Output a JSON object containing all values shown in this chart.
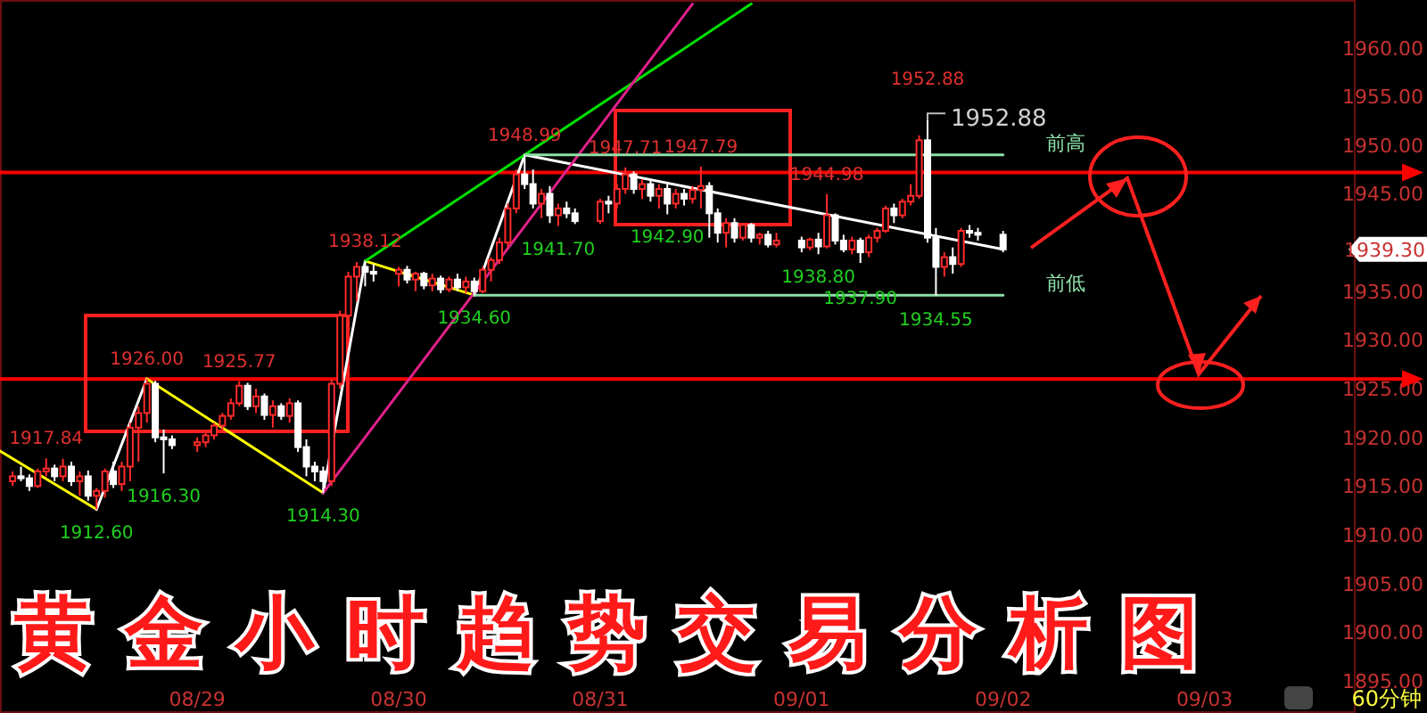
{
  "chart_data": {
    "type": "candlestick",
    "title": "黄金小时趋势交易分析图",
    "x": [
      "--08-28T02:00",
      "--08-28T03:00",
      "--08-28T04:00",
      "--08-28T05:00",
      "--08-28T06:00",
      "--08-28T07:00",
      "--08-28T08:00",
      "--08-28T09:00",
      "--08-28T10:00",
      "--08-28T11:00",
      "--08-28T12:00",
      "--08-28T13:00",
      "--08-28T14:00",
      "--08-28T15:00",
      "--08-28T16:00",
      "--08-28T17:00",
      "--08-28T18:00",
      "--08-28T19:00",
      "--08-28T20:00",
      "--08-28T21:00",
      "--08-29T00:00",
      "--08-29T01:00",
      "--08-29T02:00",
      "--08-29T03:00",
      "--08-29T04:00",
      "--08-29T05:00",
      "--08-29T06:00",
      "--08-29T07:00",
      "--08-29T08:00",
      "--08-29T09:00",
      "--08-29T10:00",
      "--08-29T11:00",
      "--08-29T12:00",
      "--08-29T13:00",
      "--08-29T14:00",
      "--08-29T15:00",
      "--08-29T16:00",
      "--08-29T17:00",
      "--08-29T18:00",
      "--08-29T19:00",
      "--08-29T20:00",
      "--08-29T21:00",
      "--08-30T00:00",
      "--08-30T01:00",
      "--08-30T02:00",
      "--08-30T03:00",
      "--08-30T04:00",
      "--08-30T05:00",
      "--08-30T06:00",
      "--08-30T07:00",
      "--08-30T08:00",
      "--08-30T09:00",
      "--08-30T10:00",
      "--08-30T11:00",
      "--08-30T12:00",
      "--08-30T13:00",
      "--08-30T14:00",
      "--08-30T15:00",
      "--08-30T16:00",
      "--08-30T17:00",
      "--08-30T18:00",
      "--08-30T19:00",
      "--08-30T20:00",
      "--08-30T21:00",
      "--08-31T00:00",
      "--08-31T01:00",
      "--08-31T02:00",
      "--08-31T03:00",
      "--08-31T04:00",
      "--08-31T05:00",
      "--08-31T06:00",
      "--08-31T07:00",
      "--08-31T08:00",
      "--08-31T09:00",
      "--08-31T10:00",
      "--08-31T11:00",
      "--08-31T12:00",
      "--08-31T13:00",
      "--08-31T14:00",
      "--08-31T15:00",
      "--08-31T16:00",
      "--08-31T17:00",
      "--08-31T18:00",
      "--08-31T19:00",
      "--08-31T20:00",
      "--08-31T21:00",
      "--09-01T00:00",
      "--09-01T01:00",
      "--09-01T02:00",
      "--09-01T03:00",
      "--09-01T04:00",
      "--09-01T05:00",
      "--09-01T06:00",
      "--09-01T07:00",
      "--09-01T08:00",
      "--09-01T09:00",
      "--09-01T10:00",
      "--09-01T11:00",
      "--09-01T12:00",
      "--09-01T13:00",
      "--09-01T14:00",
      "--09-01T15:00",
      "--09-01T16:00",
      "--09-01T17:00",
      "--09-01T18:00",
      "--09-01T19:00",
      "--09-01T20:00",
      "--09-01T21:00",
      "--09-02T00:00"
    ],
    "ohlc": [
      [
        1915.5,
        1916.5,
        1915,
        1916
      ],
      [
        1916,
        1917,
        1915.5,
        1915.8
      ],
      [
        1915.8,
        1916.2,
        1914.5,
        1915
      ],
      [
        1915,
        1916.8,
        1914.8,
        1916.5
      ],
      [
        1916.5,
        1917.84,
        1916,
        1916.8
      ],
      [
        1916.8,
        1917.2,
        1915.5,
        1916
      ],
      [
        1916,
        1917.8,
        1915.5,
        1917
      ],
      [
        1917,
        1917.5,
        1915,
        1915.5
      ],
      [
        1915.5,
        1916.5,
        1914,
        1916
      ],
      [
        1916,
        1916.6,
        1913.5,
        1914
      ],
      [
        1914,
        1914.8,
        1912.6,
        1914.5
      ],
      [
        1914.5,
        1916.8,
        1913.8,
        1916.5
      ],
      [
        1916.5,
        1917.5,
        1914.8,
        1915.2
      ],
      [
        1915.2,
        1917.5,
        1914.5,
        1917
      ],
      [
        1917,
        1921.5,
        1915.5,
        1921
      ],
      [
        1921,
        1923.2,
        1917.5,
        1922.5
      ],
      [
        1922.5,
        1926,
        1921.5,
        1925.5
      ],
      [
        1925.5,
        1925.8,
        1919.5,
        1920
      ],
      [
        1920,
        1920.8,
        1916.3,
        1919.8
      ],
      [
        1919.8,
        1920.2,
        1918.8,
        1919.2
      ],
      [
        1919.2,
        1920,
        1918.5,
        1919.5
      ],
      [
        1919.5,
        1920.5,
        1919,
        1920.2
      ],
      [
        1920.2,
        1921.5,
        1919.8,
        1921.2
      ],
      [
        1921.2,
        1922.5,
        1920.8,
        1922.2
      ],
      [
        1922.2,
        1924,
        1921.8,
        1923.5
      ],
      [
        1923.5,
        1925.77,
        1923.2,
        1925.3
      ],
      [
        1925.3,
        1925.6,
        1922.8,
        1923.2
      ],
      [
        1923.2,
        1925,
        1922.5,
        1924.2
      ],
      [
        1924.2,
        1924.5,
        1921.8,
        1922.3
      ],
      [
        1922.3,
        1923.8,
        1921,
        1923.2
      ],
      [
        1923.2,
        1923.5,
        1921.8,
        1922.2
      ],
      [
        1922.2,
        1924,
        1921.5,
        1923.5
      ],
      [
        1923.5,
        1923.8,
        1918.5,
        1919
      ],
      [
        1919,
        1919.8,
        1916,
        1917
      ],
      [
        1917,
        1917.5,
        1915.5,
        1916.5
      ],
      [
        1916.5,
        1917,
        1914.3,
        1915.5
      ],
      [
        1915.5,
        1926,
        1915,
        1925.5
      ],
      [
        1925.5,
        1933,
        1925,
        1932.5
      ],
      [
        1932.5,
        1937,
        1931,
        1936.5
      ],
      [
        1936.5,
        1938,
        1934,
        1937.5
      ],
      [
        1937.5,
        1938.12,
        1935.5,
        1937
      ],
      [
        1937,
        1937.8,
        1936,
        1936.8
      ],
      [
        1936.8,
        1937.5,
        1935.5,
        1937.2
      ],
      [
        1937.2,
        1937.6,
        1935.8,
        1936.2
      ],
      [
        1936.2,
        1937,
        1935,
        1936.8
      ],
      [
        1936.8,
        1937,
        1935.2,
        1935.6
      ],
      [
        1935.6,
        1936.8,
        1935,
        1936.3
      ],
      [
        1936.3,
        1936.6,
        1934.8,
        1935.2
      ],
      [
        1935.2,
        1936.5,
        1934.9,
        1936.2
      ],
      [
        1936.2,
        1936.8,
        1935,
        1935.4
      ],
      [
        1935.4,
        1936.5,
        1934.8,
        1936
      ],
      [
        1936,
        1936.4,
        1934.6,
        1935
      ],
      [
        1935,
        1937.5,
        1934.8,
        1937.2
      ],
      [
        1937.2,
        1938.5,
        1936,
        1938.2
      ],
      [
        1938.2,
        1940.5,
        1937.8,
        1940
      ],
      [
        1940,
        1944,
        1939.5,
        1943.5
      ],
      [
        1943.5,
        1947.5,
        1943,
        1947
      ],
      [
        1947,
        1948.99,
        1945.5,
        1946
      ],
      [
        1946,
        1947.5,
        1943.5,
        1944
      ],
      [
        1944,
        1945.5,
        1942.5,
        1945
      ],
      [
        1945,
        1945.8,
        1942,
        1942.8
      ],
      [
        1942.8,
        1944,
        1941.7,
        1943.5
      ],
      [
        1943.5,
        1944.2,
        1942.5,
        1943
      ],
      [
        1943,
        1943.5,
        1941.9,
        1942.2
      ],
      [
        1942.2,
        1944.5,
        1941.9,
        1944.2
      ],
      [
        1944.2,
        1944.8,
        1943,
        1944
      ],
      [
        1944,
        1946,
        1943.5,
        1945.5
      ],
      [
        1945.5,
        1947.71,
        1945,
        1947
      ],
      [
        1947,
        1947.3,
        1945,
        1945.5
      ],
      [
        1945.5,
        1946.5,
        1944.5,
        1946
      ],
      [
        1946,
        1946.5,
        1944.2,
        1944.8
      ],
      [
        1944.8,
        1946,
        1943.5,
        1945.5
      ],
      [
        1945.5,
        1946,
        1942.9,
        1944
      ],
      [
        1944,
        1945.5,
        1943.5,
        1945
      ],
      [
        1945,
        1945.5,
        1943.8,
        1944.5
      ],
      [
        1944.5,
        1945.8,
        1944,
        1945.4
      ],
      [
        1945.4,
        1947.79,
        1943.5,
        1945.8
      ],
      [
        1945.8,
        1946.2,
        1940.5,
        1943
      ],
      [
        1943,
        1943.5,
        1940,
        1941
      ],
      [
        1941,
        1942.5,
        1939.5,
        1942
      ],
      [
        1942,
        1942.5,
        1940,
        1940.5
      ],
      [
        1940.5,
        1942,
        1940.2,
        1941.8
      ],
      [
        1941.8,
        1942,
        1940,
        1940.5
      ],
      [
        1940.5,
        1941,
        1939.8,
        1940.8
      ],
      [
        1940.8,
        1941.2,
        1939.5,
        1939.8
      ],
      [
        1939.8,
        1941,
        1939.5,
        1940.2
      ],
      [
        1940.2,
        1940.6,
        1939,
        1939.5
      ],
      [
        1939.5,
        1940.5,
        1939.2,
        1940.3
      ],
      [
        1940.3,
        1941,
        1938.8,
        1939.6
      ],
      [
        1939.6,
        1944.98,
        1939.4,
        1942.8
      ],
      [
        1942.8,
        1943,
        1939.8,
        1940.2
      ],
      [
        1940.2,
        1940.8,
        1939,
        1939.3
      ],
      [
        1939.3,
        1940.6,
        1938.8,
        1940.2
      ],
      [
        1940.2,
        1940.5,
        1937.9,
        1939
      ],
      [
        1939,
        1940.8,
        1938.5,
        1940.5
      ],
      [
        1940.5,
        1941.5,
        1940,
        1941.2
      ],
      [
        1941.2,
        1943.8,
        1941,
        1943.5
      ],
      [
        1943.5,
        1944,
        1942,
        1942.8
      ],
      [
        1942.8,
        1944.5,
        1942.5,
        1944.2
      ],
      [
        1944.2,
        1946,
        1943.8,
        1944.8
      ],
      [
        1944.8,
        1951,
        1944.5,
        1950.5
      ],
      [
        1950.5,
        1952.88,
        1940,
        1940.5
      ],
      [
        1940.5,
        1941.5,
        1934.55,
        1937.5
      ],
      [
        1937.5,
        1939,
        1936.5,
        1938.5
      ],
      [
        1938.5,
        1939.5,
        1936.8,
        1937.8
      ],
      [
        1937.8,
        1941.5,
        1937.5,
        1941.2
      ],
      [
        1941.2,
        1941.8,
        1940.5,
        1941
      ],
      [
        1941,
        1941.5,
        1940.2,
        1940.8
      ],
      [
        1940.8,
        1941.2,
        1939,
        1939.3
      ]
    ],
    "series": [
      {
        "type": "line",
        "color": "#ffff00",
        "x": [
          "--08-28T00:30",
          "--08-28T12:00"
        ],
        "values": [
          1918.6,
          1912.6
        ]
      },
      {
        "type": "line",
        "color": "#ffffff",
        "x": [
          "--08-28T12:00",
          "--08-28T18:00"
        ],
        "values": [
          1912.6,
          1926.0
        ]
      },
      {
        "type": "line",
        "color": "#ffff00",
        "x": [
          "--08-28T18:00",
          "--08-29T15:00"
        ],
        "values": [
          1926.0,
          1914.3
        ]
      },
      {
        "type": "line",
        "color": "#ffffff",
        "x": [
          "--08-29T15:00",
          "--08-29T20:00"
        ],
        "values": [
          1914.3,
          1938.1
        ]
      },
      {
        "type": "line",
        "color": "#ffff00",
        "x": [
          "--08-29T20:00",
          "--08-30T09:00"
        ],
        "values": [
          1938.1,
          1934.6
        ]
      },
      {
        "type": "line",
        "color": "#ffffff",
        "x": [
          "--08-30T09:00",
          "--08-30T15:00"
        ],
        "values": [
          1934.6,
          1949.0
        ]
      },
      {
        "type": "line",
        "color": "#ffffff",
        "x": [
          "--08-30T15:00",
          "--09-02T00:00"
        ],
        "values": [
          1949.0,
          1939.3
        ]
      },
      {
        "type": "line",
        "color": "#00e000",
        "x": [
          "--08-29T20:00",
          "--08-30T15:00",
          "--08-31T18:00"
        ],
        "values": [
          1938.1,
          1949.0,
          1964.5
        ]
      },
      {
        "type": "line",
        "color": "#e0208a",
        "x": [
          "--08-29T15:00",
          "--08-31T11:00"
        ],
        "values": [
          1914.3,
          1964.5
        ]
      },
      {
        "type": "line",
        "name": "前高",
        "color": "#8ee0a8",
        "x": [
          "--08-30T15:00",
          "--09-02T00:00"
        ],
        "values": [
          1949.0,
          1949.0
        ]
      },
      {
        "type": "line",
        "name": "前低",
        "color": "#8ee0a8",
        "x": [
          "--08-30T09:00",
          "--09-02T00:00"
        ],
        "values": [
          1934.6,
          1934.6
        ]
      }
    ],
    "ref_lines": [
      {
        "axis": "y",
        "value": 1947.2,
        "color": "#ff0000"
      },
      {
        "axis": "y",
        "value": 1926,
        "color": "#ff0000"
      }
    ],
    "annotations": [
      {
        "text": "1917.84",
        "x": "--08-28T06:00",
        "y": 1917.84
      },
      {
        "text": "1912.60",
        "x": "--08-28T12:00",
        "y": 1912.6
      },
      {
        "text": "1926.00",
        "x": "--08-28T18:00",
        "y": 1926
      },
      {
        "text": "1916.30",
        "x": "--08-28T20:00",
        "y": 1916.3
      },
      {
        "text": "1925.77",
        "x": "--08-29T05:00",
        "y": 1925.77
      },
      {
        "text": "1914.30",
        "x": "--08-29T15:00",
        "y": 1914.3
      },
      {
        "text": "1938.12",
        "x": "--08-29T20:00",
        "y": 1938.12
      },
      {
        "text": "1934.60",
        "x": "--08-30T09:00",
        "y": 1934.6
      },
      {
        "text": "1948.99",
        "x": "--08-30T15:00",
        "y": 1948.99
      },
      {
        "text": "1941.70",
        "x": "--08-30T19:00",
        "y": 1941.7
      },
      {
        "text": "1947.71",
        "x": "--08-31T03:00",
        "y": 1947.71
      },
      {
        "text": "1942.90",
        "x": "--08-31T08:00",
        "y": 1942.9
      },
      {
        "text": "1947.79",
        "x": "--08-31T12:00",
        "y": 1947.79
      },
      {
        "text": "1938.80",
        "x": "--09-01T02:00",
        "y": 1938.8
      },
      {
        "text": "1944.98",
        "x": "--09-01T03:00",
        "y": 1944.98
      },
      {
        "text": "1937.90",
        "x": "--09-01T07:00",
        "y": 1937.9
      },
      {
        "text": "1952.88",
        "x": "--09-01T15:00",
        "y": 1952.88
      },
      {
        "text": "1934.55",
        "x": "--09-01T16:00",
        "y": 1934.55
      },
      {
        "text": "1952.88",
        "x": "--09-01T15:00",
        "y": 1952.88
      },
      "1939.30",
      "60分钟"
    ],
    "xlim": [
      "--08-28T00:30",
      "--09-03T18:00"
    ],
    "ylim": [
      1891.7,
      1964.9
    ],
    "xticks": [
      {
        "value": "--08-29",
        "label": "08/29"
      },
      {
        "value": "--08-30",
        "label": "08/30"
      },
      {
        "value": "--08-31",
        "label": "08/31"
      },
      {
        "value": "--09-01",
        "label": "09/01"
      },
      {
        "value": "--09-02",
        "label": "09/02"
      },
      {
        "value": "--09-03",
        "label": "09/03"
      }
    ],
    "yticks": [
      {
        "value": 1895,
        "label": "1895.00"
      },
      {
        "value": 1900,
        "label": "1900.00"
      },
      {
        "value": 1905,
        "label": "1905.00"
      },
      {
        "value": 1910,
        "label": "1910.00"
      },
      {
        "value": 1915,
        "label": "1915.00"
      },
      {
        "value": 1920,
        "label": "1920.00"
      },
      {
        "value": 1925,
        "label": "1925.00"
      },
      {
        "value": 1930,
        "label": "1930.00"
      },
      {
        "value": 1935,
        "label": "1935.00"
      },
      {
        "value": 1945,
        "label": "1945.00"
      },
      {
        "value": 1950,
        "label": "1950.00"
      },
      {
        "value": 1955,
        "label": "1955.00"
      },
      {
        "value": 1960,
        "label": "1960.00"
      }
    ]
  }
}
